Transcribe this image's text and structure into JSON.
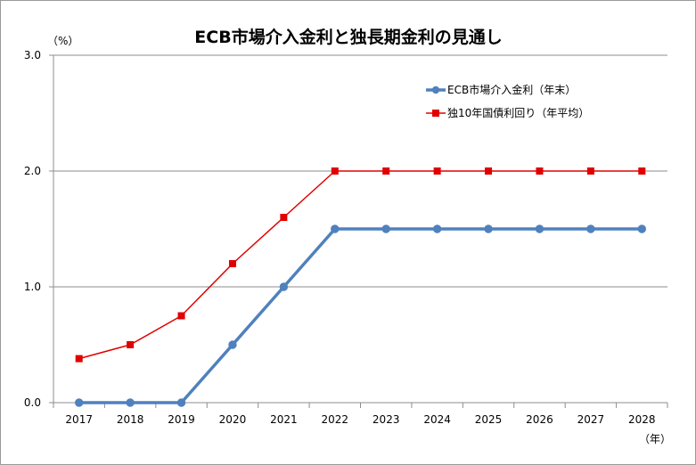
{
  "chart_data": {
    "type": "line",
    "title": "ECB市場介入金利と独長期金利の見通し",
    "y_unit_label": "（%）",
    "x_unit_label": "（年）",
    "ylim": [
      0,
      3.0
    ],
    "yticks": [
      "0.0",
      "1.0",
      "2.0",
      "3.0"
    ],
    "grid": true,
    "legend_position": "top-right",
    "categories": [
      "2017",
      "2018",
      "2019",
      "2020",
      "2021",
      "2022",
      "2023",
      "2024",
      "2025",
      "2026",
      "2027",
      "2028"
    ],
    "series": [
      {
        "name": "ECB市場介入金利（年末）",
        "color": "#4f81bd",
        "marker": "circle",
        "values": [
          0.0,
          0.0,
          0.0,
          0.5,
          1.0,
          1.5,
          1.5,
          1.5,
          1.5,
          1.5,
          1.5,
          1.5
        ]
      },
      {
        "name": "独10年国債利回り（年平均）",
        "color": "#e00000",
        "marker": "square",
        "values": [
          0.38,
          0.5,
          0.75,
          1.2,
          1.6,
          2.0,
          2.0,
          2.0,
          2.0,
          2.0,
          2.0,
          2.0
        ]
      }
    ]
  }
}
